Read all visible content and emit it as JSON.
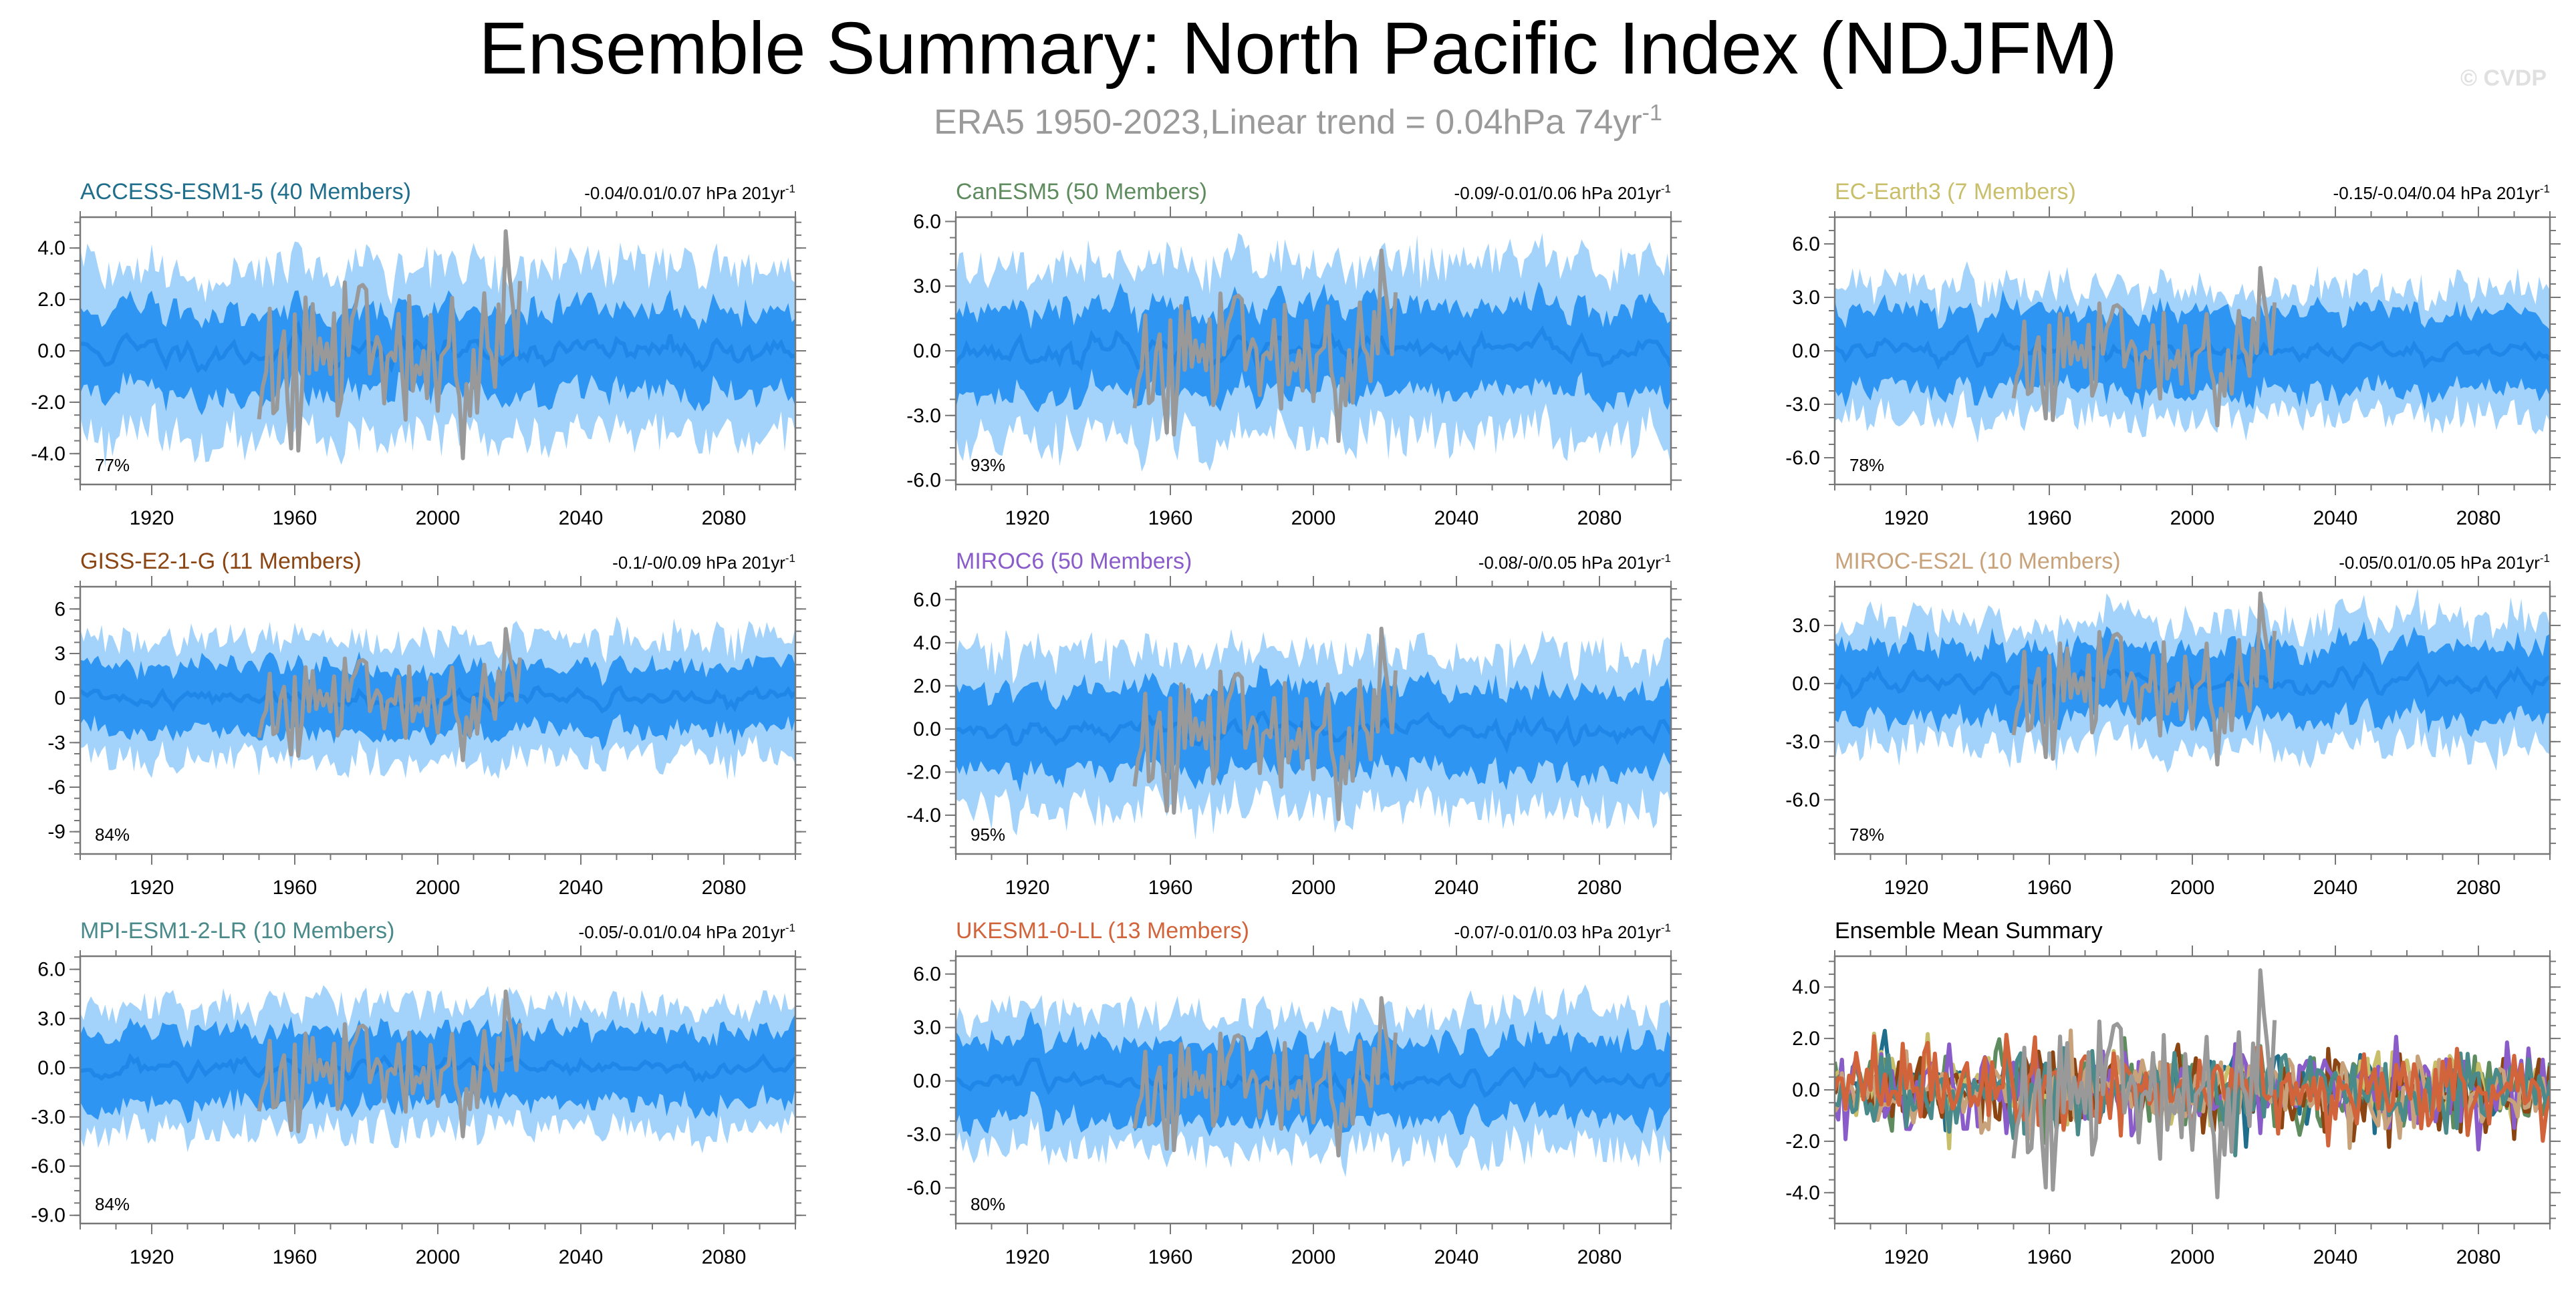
{
  "title": "Ensemble Summary: North Pacific Index (NDJFM)",
  "subtitle": "ERA5 1950-2023,Linear trend = 0.04hPa 74yr",
  "subtitle_sup": "-1",
  "watermark": "© CVDP",
  "colors": {
    "band_outer": "#a3d3fb",
    "band_inner": "#2f95f2",
    "ens_mean": "#1f87e8",
    "observed": "#999999"
  },
  "chart_data": [
    {
      "type": "area",
      "title": "ACCESS-ESM1-5 (40 Members)",
      "title_color": "#1f6e8c",
      "range": "-0.04/0.01/0.07 hPa 201yr",
      "range_sup": "-1",
      "pct": "77%",
      "xlim": [
        1900,
        2100
      ],
      "ylim": [
        -5.2,
        5.2
      ],
      "yticks": [
        4,
        2,
        0,
        -2,
        -4
      ],
      "ytick_labels": [
        "4.0",
        "2.0",
        "0.0",
        "-2.0",
        "-4.0"
      ],
      "xticks": [
        1920,
        1960,
        2000,
        2040,
        2080
      ],
      "xtick_labels": [
        "1920",
        "1960",
        "2000",
        "2040",
        "2080"
      ],
      "band_inner": 1.6,
      "band_outer": 3.2,
      "obs_sd": 1.9,
      "seed": 11
    },
    {
      "type": "area",
      "title": "CanESM5 (50 Members)",
      "title_color": "#5e8c5e",
      "range": "-0.09/-0.01/0.06 hPa 201yr",
      "range_sup": "-1",
      "pct": "93%",
      "xlim": [
        1900,
        2100
      ],
      "ylim": [
        -6.2,
        6.2
      ],
      "yticks": [
        6,
        3,
        0,
        -3,
        -6
      ],
      "ytick_labels": [
        "6.0",
        "3.0",
        "0.0",
        "-3.0",
        "-6.0"
      ],
      "xticks": [
        1920,
        1960,
        2000,
        2040,
        2080
      ],
      "xtick_labels": [
        "1920",
        "1960",
        "2000",
        "2040",
        "2080"
      ],
      "band_inner": 2.0,
      "band_outer": 4.0,
      "obs_sd": 2.0,
      "seed": 23
    },
    {
      "type": "area",
      "title": "EC-Earth3 (7 Members)",
      "title_color": "#c9bf6b",
      "range": "-0.15/-0.04/0.04 hPa 201yr",
      "range_sup": "-1",
      "pct": "78%",
      "xlim": [
        1900,
        2100
      ],
      "ylim": [
        -7.5,
        7.5
      ],
      "yticks": [
        6,
        3,
        0,
        -3,
        -6
      ],
      "ytick_labels": [
        "6.0",
        "3.0",
        "0.0",
        "-3.0",
        "-6.0"
      ],
      "xticks": [
        1920,
        1960,
        2000,
        2040,
        2080
      ],
      "xtick_labels": [
        "1920",
        "1960",
        "2000",
        "2040",
        "2080"
      ],
      "band_inner": 2.2,
      "band_outer": 3.6,
      "obs_sd": 2.0,
      "seed": 37
    },
    {
      "type": "area",
      "title": "GISS-E2-1-G (11 Members)",
      "title_color": "#8b4513",
      "range": "-0.1/-0/0.09 hPa 201yr",
      "range_sup": "-1",
      "pct": "84%",
      "xlim": [
        1900,
        2100
      ],
      "ylim": [
        -10.5,
        7.5
      ],
      "yticks": [
        6,
        3,
        0,
        -3,
        -6,
        -9
      ],
      "ytick_labels": [
        "6",
        "3",
        "0",
        "-3",
        "-6",
        "-9"
      ],
      "xticks": [
        1920,
        1960,
        2000,
        2040,
        2080
      ],
      "xtick_labels": [
        "1920",
        "1960",
        "2000",
        "2040",
        "2080"
      ],
      "band_inner": 2.2,
      "band_outer": 4.0,
      "obs_sd": 2.0,
      "seed": 41
    },
    {
      "type": "area",
      "title": "MIROC6 (50 Members)",
      "title_color": "#8a5cc9",
      "range": "-0.08/-0/0.05 hPa 201yr",
      "range_sup": "-1",
      "pct": "95%",
      "xlim": [
        1900,
        2100
      ],
      "ylim": [
        -5.8,
        6.6
      ],
      "yticks": [
        6,
        4,
        2,
        0,
        -2,
        -4
      ],
      "ytick_labels": [
        "6.0",
        "4.0",
        "2.0",
        "0.0",
        "-2.0",
        "-4.0"
      ],
      "xticks": [
        1920,
        1960,
        2000,
        2040,
        2080
      ],
      "xtick_labels": [
        "1920",
        "1960",
        "2000",
        "2040",
        "2080"
      ],
      "band_inner": 1.9,
      "band_outer": 3.6,
      "obs_sd": 1.9,
      "seed": 53
    },
    {
      "type": "area",
      "title": "MIROC-ES2L (10 Members)",
      "title_color": "#c8a27a",
      "range": "-0.05/0.01/0.05 hPa 201yr",
      "range_sup": "-1",
      "pct": "78%",
      "xlim": [
        1900,
        2100
      ],
      "ylim": [
        -8.8,
        5.0
      ],
      "yticks": [
        3,
        0,
        -3,
        -6
      ],
      "ytick_labels": [
        "3.0",
        "0.0",
        "-3.0",
        "-6.0"
      ],
      "xticks": [
        1920,
        1960,
        2000,
        2040,
        2080
      ],
      "xtick_labels": [
        "1920",
        "1960",
        "2000",
        "2040",
        "2080"
      ],
      "band_inner": 1.9,
      "band_outer": 3.2,
      "obs_sd": 1.9,
      "seed": 67
    },
    {
      "type": "area",
      "title": "MPI-ESM1-2-LR (10 Members)",
      "title_color": "#4a8a8a",
      "range": "-0.05/-0.01/0.04 hPa 201yr",
      "range_sup": "-1",
      "pct": "84%",
      "xlim": [
        1900,
        2100
      ],
      "ylim": [
        -9.5,
        6.8
      ],
      "yticks": [
        6,
        3,
        0,
        -3,
        -6,
        -9
      ],
      "ytick_labels": [
        "6.0",
        "3.0",
        "0.0",
        "-3.0",
        "-6.0",
        "-9.0"
      ],
      "xticks": [
        1920,
        1960,
        2000,
        2040,
        2080
      ],
      "xtick_labels": [
        "1920",
        "1960",
        "2000",
        "2040",
        "2080"
      ],
      "band_inner": 2.2,
      "band_outer": 3.8,
      "obs_sd": 2.0,
      "seed": 71
    },
    {
      "type": "area",
      "title": "UKESM1-0-LL (13 Members)",
      "title_color": "#d2643c",
      "range": "-0.07/-0.01/0.03 hPa 201yr",
      "range_sup": "-1",
      "pct": "80%",
      "xlim": [
        1900,
        2100
      ],
      "ylim": [
        -8.0,
        7.0
      ],
      "yticks": [
        6,
        3,
        0,
        -3,
        -6
      ],
      "ytick_labels": [
        "6.0",
        "3.0",
        "0.0",
        "-3.0",
        "-6.0"
      ],
      "xticks": [
        1920,
        1960,
        2000,
        2040,
        2080
      ],
      "xtick_labels": [
        "1920",
        "1960",
        "2000",
        "2040",
        "2080"
      ],
      "band_inner": 2.2,
      "band_outer": 3.8,
      "obs_sd": 2.0,
      "seed": 83
    },
    {
      "type": "line",
      "title": "Ensemble Mean Summary",
      "title_color": "#000000",
      "range": "",
      "range_sup": "",
      "pct": "",
      "xlim": [
        1900,
        2100
      ],
      "ylim": [
        -5.2,
        5.2
      ],
      "yticks": [
        4,
        2,
        0,
        -2,
        -4
      ],
      "ytick_labels": [
        "4.0",
        "2.0",
        "0.0",
        "-2.0",
        "-4.0"
      ],
      "xticks": [
        1920,
        1960,
        2000,
        2040,
        2080
      ],
      "xtick_labels": [
        "1920",
        "1960",
        "2000",
        "2040",
        "2080"
      ],
      "series_colors": [
        "#1f6e8c",
        "#5e8c5e",
        "#c9bf6b",
        "#8b4513",
        "#8a5cc9",
        "#c8a27a",
        "#4a8a8a",
        "#d2643c"
      ],
      "seed": 97
    }
  ]
}
